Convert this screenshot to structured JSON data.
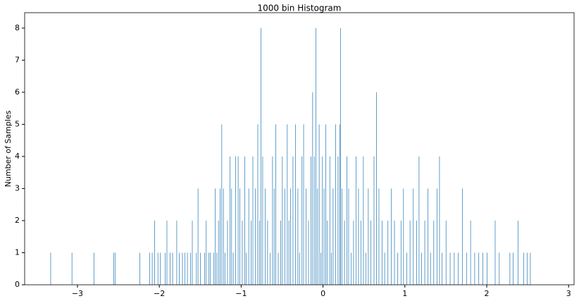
{
  "chart_data": {
    "type": "histogram",
    "title": "1000 bin Histogram",
    "y_label": "Number of Samples",
    "color": "#1f77b4",
    "bins": [
      -3.33,
      -3.324,
      -3.07,
      -3.064,
      -2.8,
      -2.794,
      -2.56,
      -2.554,
      -2.54,
      -2.534,
      -2.24,
      -2.234,
      -2.12,
      -2.114,
      -2.09,
      -2.084,
      -2.06,
      -2.054,
      -2.02,
      -2.014,
      -1.99,
      -1.984,
      -1.93,
      -1.924,
      -1.91,
      -1.904,
      -1.87,
      -1.864,
      -1.84,
      -1.834,
      -1.79,
      -1.784,
      -1.76,
      -1.754,
      -1.72,
      -1.714,
      -1.69,
      -1.684,
      -1.66,
      -1.654,
      -1.62,
      -1.614,
      -1.6,
      -1.594,
      -1.55,
      -1.544,
      -1.53,
      -1.524,
      -1.5,
      -1.494,
      -1.45,
      -1.444,
      -1.43,
      -1.424,
      -1.4,
      -1.394,
      -1.38,
      -1.374,
      -1.34,
      -1.334,
      -1.32,
      -1.314,
      -1.3,
      -1.294,
      -1.28,
      -1.274,
      -1.26,
      -1.254,
      -1.24,
      -1.234,
      -1.22,
      -1.214,
      -1.2,
      -1.194,
      -1.17,
      -1.164,
      -1.14,
      -1.134,
      -1.12,
      -1.114,
      -1.1,
      -1.094,
      -1.07,
      -1.064,
      -1.04,
      -1.034,
      -1.02,
      -1.014,
      -0.99,
      -0.984,
      -0.96,
      -0.954,
      -0.94,
      -0.934,
      -0.91,
      -0.904,
      -0.88,
      -0.874,
      -0.86,
      -0.854,
      -0.83,
      -0.824,
      -0.8,
      -0.794,
      -0.78,
      -0.774,
      -0.76,
      -0.754,
      -0.74,
      -0.734,
      -0.71,
      -0.704,
      -0.68,
      -0.674,
      -0.65,
      -0.644,
      -0.62,
      -0.614,
      -0.6,
      -0.594,
      -0.58,
      -0.574,
      -0.55,
      -0.544,
      -0.52,
      -0.514,
      -0.5,
      -0.494,
      -0.47,
      -0.464,
      -0.44,
      -0.434,
      -0.42,
      -0.414,
      -0.4,
      -0.394,
      -0.37,
      -0.364,
      -0.34,
      -0.334,
      -0.31,
      -0.304,
      -0.29,
      -0.284,
      -0.26,
      -0.254,
      -0.24,
      -0.234,
      -0.21,
      -0.204,
      -0.18,
      -0.174,
      -0.15,
      -0.144,
      -0.13,
      -0.124,
      -0.11,
      -0.104,
      -0.09,
      -0.084,
      -0.07,
      -0.064,
      -0.05,
      -0.044,
      -0.03,
      -0.024,
      -0.01,
      -0.004,
      0.01,
      0.016,
      0.03,
      0.036,
      0.05,
      0.056,
      0.08,
      0.086,
      0.1,
      0.106,
      0.12,
      0.126,
      0.15,
      0.156,
      0.18,
      0.186,
      0.2,
      0.206,
      0.21,
      0.216,
      0.23,
      0.236,
      0.26,
      0.266,
      0.29,
      0.296,
      0.31,
      0.316,
      0.34,
      0.346,
      0.37,
      0.376,
      0.4,
      0.406,
      0.43,
      0.436,
      0.46,
      0.466,
      0.49,
      0.496,
      0.52,
      0.526,
      0.55,
      0.556,
      0.58,
      0.586,
      0.62,
      0.626,
      0.65,
      0.656,
      0.68,
      0.686,
      0.72,
      0.726,
      0.75,
      0.756,
      0.79,
      0.796,
      0.83,
      0.836,
      0.87,
      0.876,
      0.91,
      0.916,
      0.95,
      0.956,
      0.98,
      0.986,
      1.02,
      1.026,
      1.06,
      1.066,
      1.1,
      1.106,
      1.14,
      1.146,
      1.17,
      1.176,
      1.2,
      1.206,
      1.24,
      1.246,
      1.28,
      1.286,
      1.31,
      1.316,
      1.35,
      1.356,
      1.39,
      1.396,
      1.42,
      1.426,
      1.45,
      1.456,
      1.5,
      1.506,
      1.55,
      1.556,
      1.6,
      1.606,
      1.65,
      1.656,
      1.7,
      1.706,
      1.75,
      1.756,
      1.8,
      1.806,
      1.85,
      1.856,
      1.9,
      1.906,
      1.95,
      1.956,
      2.0,
      2.006,
      2.1,
      2.106,
      2.15,
      2.156,
      2.28,
      2.286,
      2.32,
      2.326,
      2.38,
      2.386,
      2.45,
      2.456,
      2.49,
      2.496,
      2.53,
      2.536
    ],
    "counts": [
      1,
      0,
      1,
      0,
      1,
      0,
      1,
      0,
      1,
      0,
      1,
      0,
      1,
      0,
      1,
      0,
      2,
      0,
      1,
      0,
      1,
      0,
      1,
      0,
      2,
      0,
      1,
      0,
      1,
      0,
      2,
      0,
      1,
      0,
      1,
      0,
      1,
      0,
      1,
      0,
      1,
      0,
      2,
      0,
      1,
      0,
      3,
      0,
      1,
      0,
      1,
      0,
      2,
      0,
      1,
      0,
      1,
      0,
      1,
      0,
      3,
      0,
      1,
      0,
      2,
      0,
      3,
      0,
      5,
      0,
      3,
      0,
      1,
      0,
      2,
      0,
      4,
      0,
      3,
      0,
      1,
      0,
      4,
      0,
      4,
      0,
      3,
      0,
      2,
      0,
      4,
      0,
      1,
      0,
      3,
      0,
      2,
      0,
      4,
      0,
      3,
      0,
      5,
      0,
      2,
      0,
      8,
      0,
      4,
      0,
      3,
      0,
      2,
      0,
      1,
      0,
      4,
      0,
      3,
      0,
      5,
      0,
      1,
      0,
      2,
      0,
      4,
      0,
      3,
      0,
      5,
      0,
      2,
      0,
      3,
      0,
      4,
      0,
      5,
      0,
      3,
      0,
      1,
      0,
      4,
      0,
      5,
      0,
      3,
      0,
      2,
      0,
      4,
      0,
      6,
      0,
      4,
      0,
      8,
      0,
      3,
      0,
      5,
      0,
      1,
      0,
      4,
      0,
      3,
      0,
      5,
      0,
      2,
      0,
      4,
      0,
      1,
      0,
      3,
      0,
      5,
      0,
      4,
      0,
      5,
      0,
      8,
      0,
      3,
      0,
      2,
      0,
      4,
      0,
      3,
      0,
      1,
      0,
      2,
      0,
      4,
      0,
      3,
      0,
      2,
      0,
      4,
      0,
      1,
      0,
      3,
      0,
      2,
      0,
      4,
      0,
      6,
      0,
      3,
      0,
      2,
      0,
      1,
      0,
      2,
      0,
      3,
      0,
      2,
      0,
      1,
      0,
      2,
      0,
      3,
      0,
      1,
      0,
      2,
      0,
      3,
      0,
      2,
      0,
      4,
      0,
      1,
      0,
      2,
      0,
      3,
      0,
      1,
      0,
      2,
      0,
      3,
      0,
      4,
      0,
      1,
      0,
      2,
      0,
      1,
      0,
      1,
      0,
      1,
      0,
      3,
      0,
      1,
      0,
      2,
      0,
      1,
      0,
      1,
      0,
      1,
      0,
      1,
      0,
      2,
      0,
      1,
      0,
      1,
      0,
      1,
      0,
      2,
      0,
      1,
      0,
      1,
      0,
      1
    ],
    "xlim": [
      -3.645,
      3.067
    ],
    "ylim": [
      0,
      8.48
    ],
    "xticks": [
      {
        "value": -3,
        "label": "−3"
      },
      {
        "value": -2,
        "label": "−2"
      },
      {
        "value": -1,
        "label": "−1"
      },
      0,
      1,
      2,
      3
    ],
    "yticks": [
      0,
      1,
      2,
      3,
      4,
      5,
      6,
      7,
      8
    ]
  }
}
